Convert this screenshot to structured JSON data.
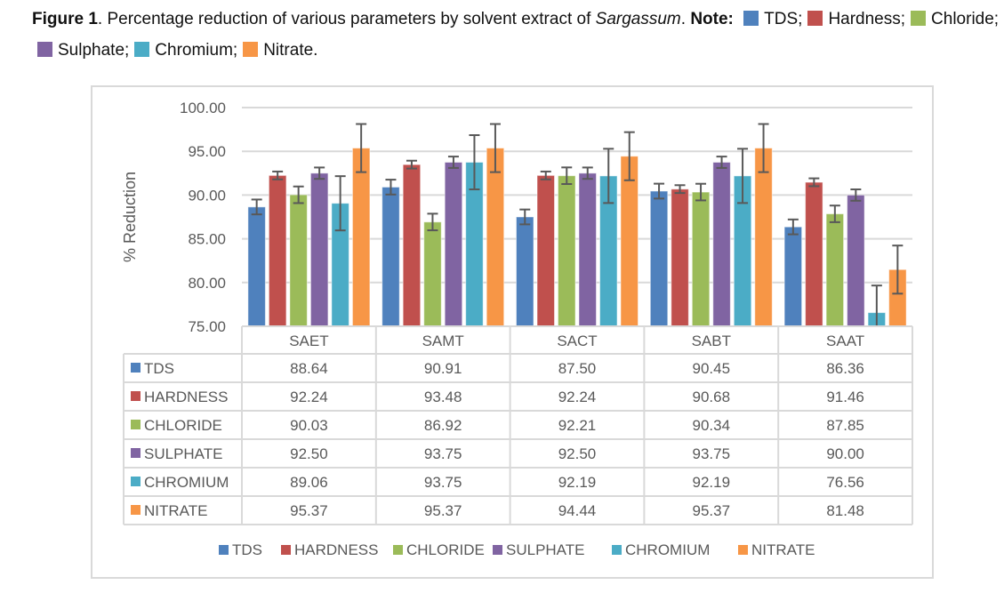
{
  "caption": {
    "figure_label": "Figure 1",
    "text_before_italic": ". Percentage reduction of various parameters by solvent extract of ",
    "italic_text": "Sargassum",
    "text_after_italic": ". ",
    "note_label": "Note:",
    "legend_items": [
      {
        "label": "TDS;",
        "color": "#4f81bd"
      },
      {
        "label": "Hardness;",
        "color": "#c0504d"
      },
      {
        "label": "Chloride;",
        "color": "#9bbb59"
      },
      {
        "label": "Sulphate;",
        "color": "#8064a2"
      },
      {
        "label": "Chromium;",
        "color": "#4bacc6"
      },
      {
        "label": "Nitrate.",
        "color": "#f79646"
      }
    ]
  },
  "chart_data": {
    "type": "bar",
    "title": "",
    "xlabel": "",
    "ylabel": "% Reduction",
    "ylim": [
      75,
      100
    ],
    "yticks": [
      "75.00",
      "80.00",
      "85.00",
      "90.00",
      "95.00",
      "100.00"
    ],
    "ytick_values": [
      75,
      80,
      85,
      90,
      95,
      100
    ],
    "grid": true,
    "legend_position": "bottom",
    "categories": [
      "SAET",
      "SAMT",
      "SACT",
      "SABT",
      "SAAT"
    ],
    "series": [
      {
        "name": "TDS",
        "color": "#4f81bd",
        "values": [
          88.64,
          90.91,
          87.5,
          90.45,
          86.36
        ],
        "labels": [
          "88.64",
          "90.91",
          "87.50",
          "90.45",
          "86.36"
        ],
        "errors": [
          0.85,
          0.85,
          0.85,
          0.85,
          0.85
        ]
      },
      {
        "name": "HARDNESS",
        "color": "#c0504d",
        "values": [
          92.24,
          93.48,
          92.24,
          90.68,
          91.46
        ],
        "labels": [
          "92.24",
          "93.48",
          "92.24",
          "90.68",
          "91.46"
        ],
        "errors": [
          0.45,
          0.45,
          0.45,
          0.45,
          0.45
        ]
      },
      {
        "name": "CHLORIDE",
        "color": "#9bbb59",
        "values": [
          90.03,
          86.92,
          92.21,
          90.34,
          87.85
        ],
        "labels": [
          "90.03",
          "86.92",
          "92.21",
          "90.34",
          "87.85"
        ],
        "errors": [
          0.95,
          0.95,
          0.95,
          0.95,
          0.95
        ]
      },
      {
        "name": "SULPHATE",
        "color": "#8064a2",
        "values": [
          92.5,
          93.75,
          92.5,
          93.75,
          90.0
        ],
        "labels": [
          "92.50",
          "93.75",
          "92.50",
          "93.75",
          "90.00"
        ],
        "errors": [
          0.65,
          0.65,
          0.65,
          0.65,
          0.65
        ]
      },
      {
        "name": "CHROMIUM",
        "color": "#4bacc6",
        "values": [
          89.06,
          93.75,
          92.19,
          92.19,
          76.56
        ],
        "labels": [
          "89.06",
          "93.75",
          "92.19",
          "92.19",
          "76.56"
        ],
        "errors": [
          3.1,
          3.1,
          3.1,
          3.1,
          3.1
        ]
      },
      {
        "name": "NITRATE",
        "color": "#f79646",
        "values": [
          95.37,
          95.37,
          94.44,
          95.37,
          81.48
        ],
        "labels": [
          "95.37",
          "95.37",
          "94.44",
          "95.37",
          "81.48"
        ],
        "errors": [
          2.75,
          2.75,
          2.75,
          2.75,
          2.75
        ]
      }
    ]
  }
}
